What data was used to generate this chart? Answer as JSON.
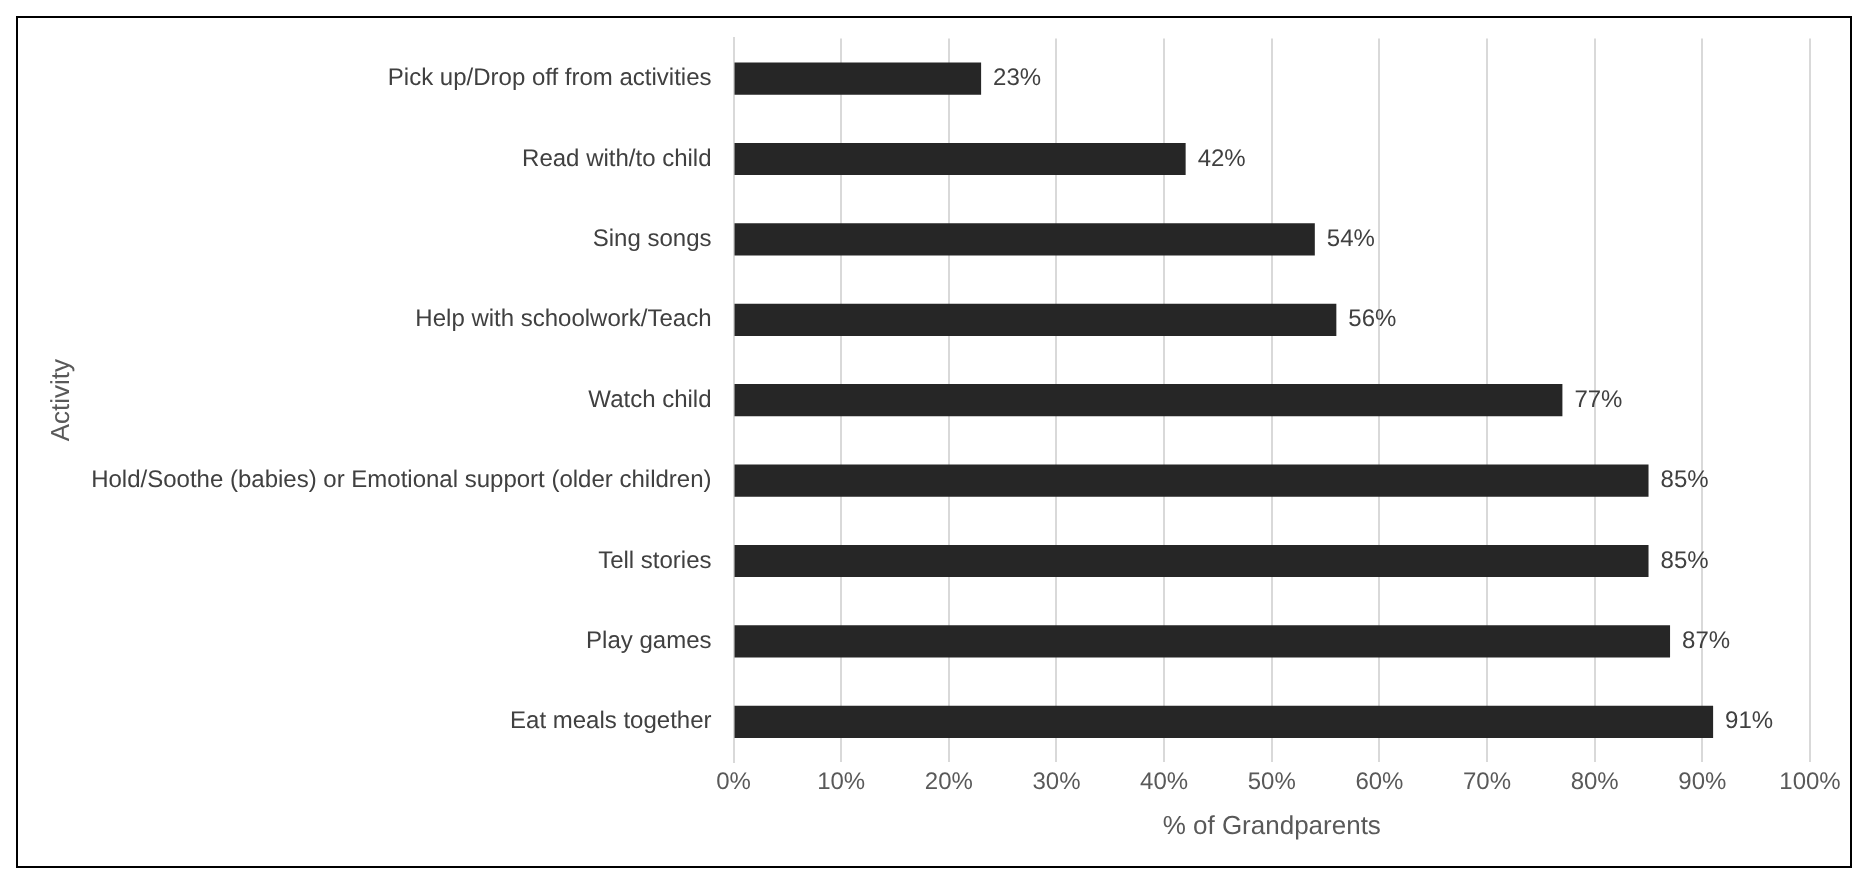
{
  "chart_data": {
    "type": "bar",
    "orientation": "horizontal",
    "xlabel": "% of Grandparents",
    "ylabel": "Activity",
    "categories": [
      "Pick up/Drop off from activities",
      "Read with/to child",
      "Sing songs",
      "Help with schoolwork/Teach",
      "Watch child",
      "Hold/Soothe (babies) or Emotional support (older children)",
      "Tell stories",
      "Play games",
      "Eat meals together"
    ],
    "values": [
      23,
      42,
      54,
      56,
      77,
      85,
      85,
      87,
      91
    ],
    "value_labels": [
      "23%",
      "42%",
      "54%",
      "56%",
      "77%",
      "85%",
      "85%",
      "87%",
      "91%"
    ],
    "color": "#262626",
    "xlim": [
      0,
      100
    ],
    "xticks": [
      {
        "value": 0,
        "label": "0%"
      },
      {
        "value": 10,
        "label": "10%"
      },
      {
        "value": 20,
        "label": "20%"
      },
      {
        "value": 30,
        "label": "30%"
      },
      {
        "value": 40,
        "label": "40%"
      },
      {
        "value": 50,
        "label": "50%"
      },
      {
        "value": 60,
        "label": "60%"
      },
      {
        "value": 70,
        "label": "70%"
      },
      {
        "value": 80,
        "label": "80%"
      },
      {
        "value": 90,
        "label": "90%"
      },
      {
        "value": 100,
        "label": "100%"
      }
    ],
    "grid": "x",
    "legend": false
  }
}
